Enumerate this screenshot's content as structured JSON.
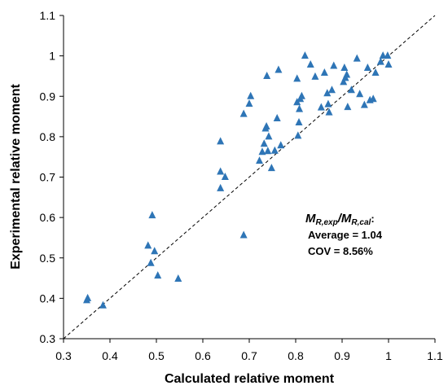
{
  "chart_data": {
    "type": "scatter",
    "xlabel": "Calculated relative moment",
    "ylabel": "Experimental relative moment",
    "xlim": [
      0.3,
      1.1
    ],
    "ylim": [
      0.3,
      1.1
    ],
    "xticks": [
      "0.3",
      "0.4",
      "0.5",
      "0.6",
      "0.7",
      "0.8",
      "0.9",
      "1",
      "1.1"
    ],
    "yticks": [
      "0.3",
      "0.4",
      "0.5",
      "0.6",
      "0.7",
      "0.8",
      "0.9",
      "1",
      "1.1"
    ],
    "grid": false,
    "marker": "triangle",
    "marker_color": "#2E75B6",
    "reference_line": {
      "style": "dashed",
      "from": [
        0.3,
        0.3
      ],
      "to": [
        1.1,
        1.1
      ]
    },
    "annotation": {
      "ratio_main_1": "M",
      "ratio_sub_1": "R,exp",
      "ratio_slash": "/",
      "ratio_main_2": "M",
      "ratio_sub_2": "R,cal",
      "ratio_colon": ":",
      "average": "Average = 1.04",
      "cov": "COV = 8.56%"
    },
    "points": [
      [
        0.35,
        0.395
      ],
      [
        0.352,
        0.4
      ],
      [
        0.385,
        0.382
      ],
      [
        0.482,
        0.53
      ],
      [
        0.488,
        0.487
      ],
      [
        0.491,
        0.605
      ],
      [
        0.496,
        0.516
      ],
      [
        0.503,
        0.456
      ],
      [
        0.547,
        0.448
      ],
      [
        0.638,
        0.788
      ],
      [
        0.638,
        0.713
      ],
      [
        0.638,
        0.672
      ],
      [
        0.648,
        0.7
      ],
      [
        0.688,
        0.556
      ],
      [
        0.688,
        0.856
      ],
      [
        0.7,
        0.881
      ],
      [
        0.703,
        0.9
      ],
      [
        0.722,
        0.74
      ],
      [
        0.728,
        0.762
      ],
      [
        0.732,
        0.782
      ],
      [
        0.735,
        0.82
      ],
      [
        0.737,
        0.825
      ],
      [
        0.738,
        0.95
      ],
      [
        0.74,
        0.764
      ],
      [
        0.742,
        0.8
      ],
      [
        0.748,
        0.722
      ],
      [
        0.755,
        0.765
      ],
      [
        0.76,
        0.845
      ],
      [
        0.763,
        0.965
      ],
      [
        0.768,
        0.778
      ],
      [
        0.803,
        0.943
      ],
      [
        0.803,
        0.885
      ],
      [
        0.805,
        0.802
      ],
      [
        0.807,
        0.835
      ],
      [
        0.808,
        0.868
      ],
      [
        0.81,
        0.893
      ],
      [
        0.813,
        0.9
      ],
      [
        0.82,
        1.0
      ],
      [
        0.832,
        0.978
      ],
      [
        0.842,
        0.948
      ],
      [
        0.855,
        0.872
      ],
      [
        0.862,
        0.958
      ],
      [
        0.868,
        0.907
      ],
      [
        0.87,
        0.88
      ],
      [
        0.872,
        0.86
      ],
      [
        0.878,
        0.915
      ],
      [
        0.882,
        0.975
      ],
      [
        0.903,
        0.935
      ],
      [
        0.905,
        0.97
      ],
      [
        0.907,
        0.945
      ],
      [
        0.91,
        0.953
      ],
      [
        0.912,
        0.873
      ],
      [
        0.92,
        0.915
      ],
      [
        0.932,
        0.993
      ],
      [
        0.938,
        0.905
      ],
      [
        0.948,
        0.878
      ],
      [
        0.955,
        0.97
      ],
      [
        0.96,
        0.89
      ],
      [
        0.967,
        0.893
      ],
      [
        0.972,
        0.958
      ],
      [
        0.983,
        0.985
      ],
      [
        0.988,
        1.0
      ],
      [
        0.998,
        1.0
      ],
      [
        1.0,
        0.978
      ]
    ]
  }
}
